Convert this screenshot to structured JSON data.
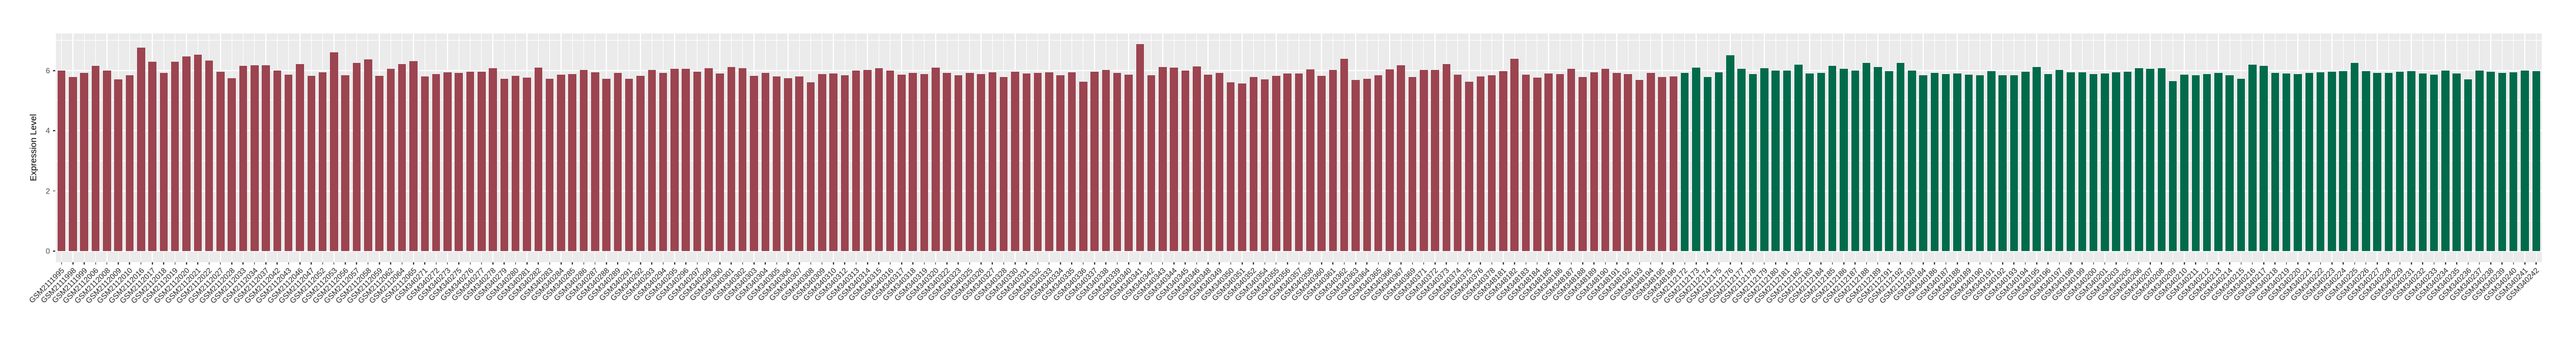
{
  "chart_data": {
    "type": "bar",
    "title": "",
    "xlabel": "",
    "ylabel": "Expression Level",
    "yticks": [
      0,
      2,
      4,
      6
    ],
    "ylim": [
      -0.37,
      7.23
    ],
    "grid": "white major+minor horizontal lines and white vertical line at each category center on gray panel",
    "legend": "none",
    "panel_bg": "#EBEBEB",
    "grid_color": "#FFFFFF",
    "tick_mark_color": "#333333",
    "axis_text_color": "#4D4D4D",
    "x_label_color": "#262626",
    "group_split_index": 143,
    "groups": [
      {
        "name": "group-1",
        "color": "#9C4450",
        "count": 143
      },
      {
        "name": "group-2",
        "color": "#006B4B",
        "count": 76
      }
    ],
    "categories": [
      "GSM2111995",
      "GSM2111998",
      "GSM2111999",
      "GSM2112006",
      "GSM2112008",
      "GSM2112009",
      "GSM2112010",
      "GSM2112016",
      "GSM2112017",
      "GSM2112018",
      "GSM2112019",
      "GSM2112020",
      "GSM2112021",
      "GSM2112022",
      "GSM2112027",
      "GSM2112028",
      "GSM2112033",
      "GSM2112034",
      "GSM2112037",
      "GSM2112042",
      "GSM2112043",
      "GSM2112046",
      "GSM2112047",
      "GSM2112052",
      "GSM2112053",
      "GSM2112056",
      "GSM2112057",
      "GSM2112058",
      "GSM2112059",
      "GSM2112062",
      "GSM2112064",
      "GSM2112065",
      "GSM340271",
      "GSM340272",
      "GSM340273",
      "GSM340275",
      "GSM340276",
      "GSM340277",
      "GSM340278",
      "GSM340279",
      "GSM340280",
      "GSM340281",
      "GSM340282",
      "GSM340283",
      "GSM340284",
      "GSM340285",
      "GSM340286",
      "GSM340287",
      "GSM340288",
      "GSM340289",
      "GSM340291",
      "GSM340292",
      "GSM340293",
      "GSM340294",
      "GSM340295",
      "GSM340296",
      "GSM340297",
      "GSM340299",
      "GSM340300",
      "GSM340301",
      "GSM340302",
      "GSM340303",
      "GSM340304",
      "GSM340305",
      "GSM340306",
      "GSM340307",
      "GSM340308",
      "GSM340309",
      "GSM340310",
      "GSM340312",
      "GSM340313",
      "GSM340314",
      "GSM340315",
      "GSM340316",
      "GSM340317",
      "GSM340318",
      "GSM340319",
      "GSM340320",
      "GSM340322",
      "GSM340323",
      "GSM340325",
      "GSM340326",
      "GSM340327",
      "GSM340328",
      "GSM340330",
      "GSM340331",
      "GSM340332",
      "GSM340333",
      "GSM340334",
      "GSM340335",
      "GSM340336",
      "GSM340337",
      "GSM340338",
      "GSM340339",
      "GSM340340",
      "GSM340341",
      "GSM340342",
      "GSM340343",
      "GSM340344",
      "GSM340345",
      "GSM340346",
      "GSM340348",
      "GSM340349",
      "GSM340350",
      "GSM340351",
      "GSM340352",
      "GSM340354",
      "GSM340355",
      "GSM340356",
      "GSM340357",
      "GSM340358",
      "GSM340360",
      "GSM340361",
      "GSM340362",
      "GSM340363",
      "GSM340364",
      "GSM340365",
      "GSM340366",
      "GSM340367",
      "GSM340369",
      "GSM340371",
      "GSM340372",
      "GSM340373",
      "GSM340374",
      "GSM340375",
      "GSM340376",
      "GSM340378",
      "GSM348181",
      "GSM348182",
      "GSM348183",
      "GSM348184",
      "GSM348185",
      "GSM348186",
      "GSM348187",
      "GSM348188",
      "GSM348189",
      "GSM348190",
      "GSM348191",
      "GSM348192",
      "GSM348193",
      "GSM348194",
      "GSM348195",
      "GSM348196",
      "GSM2112172",
      "GSM2112173",
      "GSM2112174",
      "GSM2112175",
      "GSM2112176",
      "GSM2112177",
      "GSM2112178",
      "GSM2112179",
      "GSM2112180",
      "GSM2112181",
      "GSM2112182",
      "GSM2112183",
      "GSM2112184",
      "GSM2112185",
      "GSM2112186",
      "GSM2112187",
      "GSM2112188",
      "GSM2112189",
      "GSM2112191",
      "GSM2112192",
      "GSM2112193",
      "GSM340184",
      "GSM340186",
      "GSM340187",
      "GSM340188",
      "GSM340189",
      "GSM340190",
      "GSM340191",
      "GSM340192",
      "GSM340193",
      "GSM340194",
      "GSM340195",
      "GSM340196",
      "GSM340197",
      "GSM340198",
      "GSM340199",
      "GSM340200",
      "GSM340201",
      "GSM340203",
      "GSM340205",
      "GSM340206",
      "GSM340207",
      "GSM340208",
      "GSM340209",
      "GSM340210",
      "GSM340211",
      "GSM340212",
      "GSM340213",
      "GSM340214",
      "GSM340215",
      "GSM340216",
      "GSM340217",
      "GSM340218",
      "GSM340219",
      "GSM340220",
      "GSM340221",
      "GSM340222",
      "GSM340223",
      "GSM340224",
      "GSM340225",
      "GSM340226",
      "GSM340227",
      "GSM340228",
      "GSM340229",
      "GSM340231",
      "GSM340232",
      "GSM340233",
      "GSM340234",
      "GSM340235",
      "GSM340236",
      "GSM340237",
      "GSM340238",
      "GSM340239",
      "GSM340240",
      "GSM340241",
      "GSM340242"
    ],
    "values": [
      6.0,
      5.78,
      5.92,
      6.15,
      6.0,
      5.7,
      5.85,
      6.76,
      6.3,
      5.93,
      6.3,
      6.47,
      6.52,
      6.33,
      5.97,
      5.75,
      6.15,
      6.18,
      6.18,
      6.0,
      5.87,
      6.22,
      5.82,
      5.95,
      6.6,
      5.85,
      6.25,
      6.38,
      5.82,
      6.05,
      6.22,
      6.32,
      5.8,
      5.88,
      5.95,
      5.93,
      5.97,
      5.97,
      6.08,
      5.72,
      5.83,
      5.77,
      6.1,
      5.73,
      5.86,
      5.88,
      6.02,
      5.95,
      5.73,
      5.92,
      5.73,
      5.82,
      6.02,
      5.92,
      6.05,
      6.05,
      5.97,
      6.07,
      5.9,
      6.12,
      6.07,
      5.83,
      5.92,
      5.8,
      5.75,
      5.8,
      5.6,
      5.88,
      5.9,
      5.85,
      6.0,
      6.02,
      6.07,
      6.0,
      5.87,
      5.92,
      5.88,
      6.1,
      5.93,
      5.85,
      5.92,
      5.89,
      5.94,
      5.78,
      5.97,
      5.91,
      5.93,
      5.95,
      5.85,
      5.95,
      5.62,
      5.96,
      6.02,
      5.93,
      5.86,
      6.88,
      5.84,
      6.12,
      6.1,
      6.0,
      6.13,
      5.86,
      5.92,
      5.6,
      5.57,
      5.78,
      5.7,
      5.83,
      5.9,
      5.9,
      6.03,
      5.82,
      6.02,
      6.4,
      5.68,
      5.72,
      5.85,
      6.03,
      6.18,
      5.78,
      6.02,
      6.02,
      6.22,
      5.87,
      5.62,
      5.8,
      5.85,
      5.98,
      6.4,
      5.87,
      5.77,
      5.9,
      5.88,
      6.05,
      5.78,
      5.95,
      6.05,
      5.92,
      5.88,
      5.68,
      5.92,
      5.78,
      5.8,
      5.93,
      6.1,
      5.78,
      5.95,
      6.5,
      6.05,
      5.88,
      6.08,
      6.0,
      6.0,
      6.2,
      5.9,
      5.93,
      6.15,
      6.05,
      6.0,
      6.25,
      6.12,
      5.98,
      6.25,
      6.0,
      5.85,
      5.92,
      5.88,
      5.91,
      5.87,
      5.84,
      5.98,
      5.85,
      5.85,
      5.97,
      6.12,
      5.88,
      6.02,
      5.95,
      5.95,
      5.89,
      5.91,
      5.95,
      5.96,
      6.07,
      6.06,
      6.08,
      5.65,
      5.86,
      5.84,
      5.89,
      5.92,
      5.85,
      5.72,
      6.2,
      6.15,
      5.92,
      5.91,
      5.88,
      5.93,
      5.95,
      5.97,
      5.99,
      6.25,
      5.99,
      5.93,
      5.92,
      5.97,
      5.98,
      5.9,
      5.87,
      6.0,
      5.91,
      5.7,
      6.0,
      5.97,
      5.92,
      5.94,
      6.0,
      5.99
    ]
  }
}
